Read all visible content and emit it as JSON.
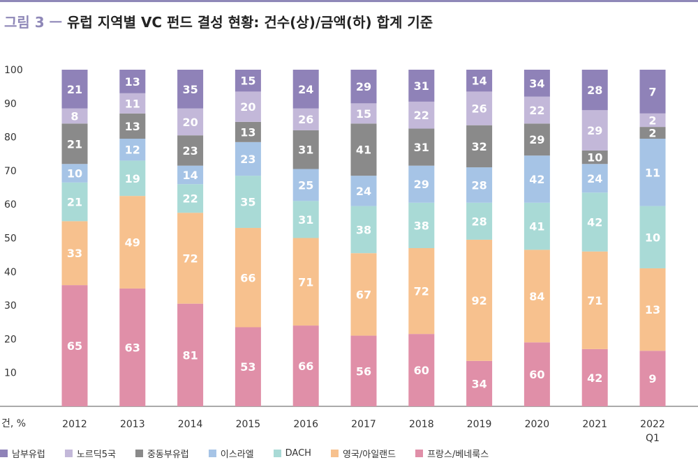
{
  "figure": {
    "label": "그림 3 ㅡ",
    "title": "유럽 지역별 VC 펀드 결성 현황: 건수(상)/금액(하) 합계 기준"
  },
  "chart_data": {
    "type": "bar",
    "stacked": true,
    "title": "유럽 지역별 VC 펀드 결성 현황: 건수(상)/금액(하) 합계 기준",
    "xlabel": "",
    "ylabel": "건, %",
    "ylim": [
      0,
      100
    ],
    "yticks": [
      10,
      20,
      30,
      40,
      50,
      60,
      70,
      80,
      90,
      100
    ],
    "categories": [
      "2012",
      "2013",
      "2014",
      "2015",
      "2016",
      "2017",
      "2018",
      "2019",
      "2020",
      "2021",
      "2022 Q1"
    ],
    "legend_position": "bottom",
    "series": [
      {
        "name": "프랑스/베네룩스",
        "color": "#e08fa8",
        "shares": [
          36,
          35,
          30.5,
          23.5,
          24,
          21,
          21.5,
          13.5,
          19,
          17,
          16.5
        ],
        "labels": [
          65,
          63,
          81,
          53,
          66,
          56,
          60,
          34,
          60,
          42,
          9
        ]
      },
      {
        "name": "영국/아일랜드",
        "color": "#f7c18e",
        "shares": [
          19,
          27.5,
          27,
          29.5,
          26,
          24.5,
          25.5,
          36,
          27.5,
          29,
          24.5
        ],
        "labels": [
          33,
          49,
          72,
          66,
          71,
          67,
          72,
          92,
          84,
          71,
          13
        ]
      },
      {
        "name": "DACH",
        "color": "#a9dad6",
        "shares": [
          11.5,
          10.5,
          8.5,
          15.5,
          11,
          14,
          13.5,
          11,
          14,
          17.5,
          18.5
        ],
        "labels": [
          21,
          19,
          22,
          35,
          31,
          38,
          38,
          28,
          41,
          42,
          10
        ]
      },
      {
        "name": "이스라엘",
        "color": "#a6c4e6",
        "shares": [
          5.5,
          6.5,
          5.5,
          10,
          9.5,
          9,
          11,
          10.5,
          14,
          8.5,
          20
        ]
      },
      {
        "name": "중동부유럽",
        "color": "#8a8a8a",
        "shares": [
          12,
          7.5,
          9,
          6,
          11.5,
          15.5,
          11,
          12.5,
          9.5,
          4,
          3.5
        ]
      },
      {
        "name": "노르딕5국",
        "color": "#c3b8d9",
        "shares": [
          4.5,
          6,
          8,
          9,
          6.5,
          6,
          8,
          10,
          8,
          12,
          4
        ]
      },
      {
        "name": "남부유럽",
        "color": "#8f82b8",
        "shares": [
          11.5,
          7,
          11.5,
          6.5,
          11.5,
          10,
          9.5,
          6.5,
          8,
          12,
          13
        ]
      }
    ],
    "segment_labels": {
      "프랑스/베네룩스": [
        65,
        63,
        81,
        53,
        66,
        56,
        60,
        34,
        60,
        42,
        9
      ],
      "영국/아일랜드": [
        33,
        49,
        72,
        66,
        71,
        67,
        72,
        92,
        84,
        71,
        13
      ],
      "DACH": [
        21,
        19,
        22,
        35,
        31,
        38,
        38,
        28,
        41,
        42,
        10
      ],
      "이스라엘": [
        10,
        12,
        14,
        23,
        25,
        24,
        29,
        28,
        42,
        24,
        11
      ],
      "중동부유럽": [
        21,
        13,
        23,
        13,
        31,
        41,
        31,
        32,
        29,
        10,
        2
      ],
      "노르딕5국": [
        8,
        11,
        20,
        20,
        26,
        15,
        22,
        26,
        22,
        29,
        2
      ],
      "남부유럽": [
        21,
        13,
        35,
        15,
        24,
        29,
        31,
        14,
        34,
        28,
        7
      ]
    },
    "legend_order": [
      "남부유럽",
      "노르딕5국",
      "중동부유럽",
      "이스라엘",
      "DACH",
      "영국/아일랜드",
      "프랑스/베네룩스"
    ]
  },
  "legend": [
    {
      "label": "남부유럽",
      "color": "#8f82b8"
    },
    {
      "label": "노르딕5국",
      "color": "#c3b8d9"
    },
    {
      "label": "중동부유럽",
      "color": "#8a8a8a"
    },
    {
      "label": "이스라엘",
      "color": "#a6c4e6"
    },
    {
      "label": "DACH",
      "color": "#a9dad6"
    },
    {
      "label": "영국/아일랜드",
      "color": "#f7c18e"
    },
    {
      "label": "프랑스/베네룩스",
      "color": "#e08fa8"
    }
  ]
}
